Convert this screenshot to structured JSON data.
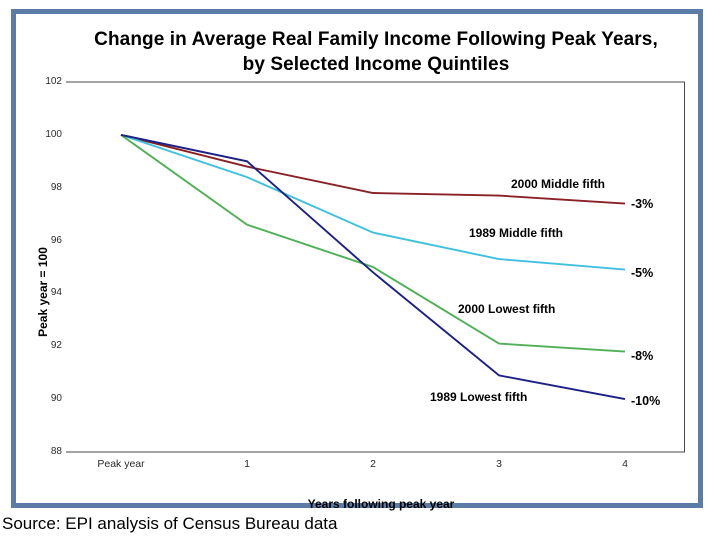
{
  "title": {
    "line1": "Change in Average Real Family Income Following Peak Years,",
    "line2": "by Selected Income Quintiles"
  },
  "source_note": "Source: EPI analysis of Census Bureau data",
  "colors": {
    "frame_border": "#5b7ca6",
    "axis": "#4a4a4a"
  },
  "chart_data": {
    "type": "line",
    "title": "Change in Average Real Family Income Following Peak Years, by Selected Income Quintiles",
    "xlabel": "Years following peak year",
    "ylabel": "Peak year = 100",
    "categories": [
      "Peak year",
      "1",
      "2",
      "3",
      "4"
    ],
    "y_ticks": [
      102,
      100,
      98,
      96,
      94,
      92,
      90,
      88
    ],
    "ylim": [
      88,
      102
    ],
    "grid": false,
    "legend_position": "inline-labels",
    "series": [
      {
        "name": "2000 Middle fifth",
        "color": "#8a2125",
        "values": [
          100,
          98.8,
          97.8,
          97.7,
          97.4
        ],
        "end_label": "-3%"
      },
      {
        "name": "1989 Middle fifth",
        "color": "#3ec1de",
        "values": [
          100,
          98.4,
          96.3,
          95.3,
          94.9
        ],
        "end_label": "-5%"
      },
      {
        "name": "2000 Lowest fifth",
        "color": "#4fb055",
        "values": [
          100,
          96.6,
          95.0,
          92.1,
          91.8
        ],
        "end_label": "-8%"
      },
      {
        "name": "1989 Lowest fifth",
        "color": "#1b2185",
        "values": [
          100,
          99.0,
          94.8,
          90.9,
          90.0
        ],
        "end_label": "-10%"
      }
    ]
  }
}
